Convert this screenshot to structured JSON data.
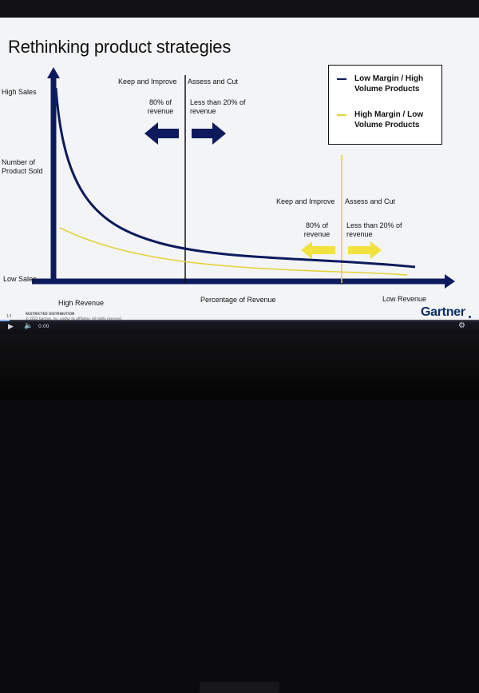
{
  "device": {
    "brand_text": ""
  },
  "slide": {
    "title": "Rethinking product strategies",
    "axis": {
      "y_top": "High Sales",
      "y_mid": "Number of\nProduct Sold",
      "y_bottom": "Low Sales",
      "x_left": "High Revenue",
      "x_mid": "Percentage of Revenue",
      "x_right": "Low Revenue"
    },
    "upper_section": {
      "keep_label": "Keep and Improve",
      "cut_label": "Assess and Cut",
      "keep_share": "80% of\nrevenue",
      "cut_share": "Less than 20% of\nrevenue"
    },
    "lower_section": {
      "keep_label": "Keep and Improve",
      "cut_label": "Assess and Cut",
      "keep_share": "80% of\nrevenue",
      "cut_share": "Less than 20% of\nrevenue"
    },
    "legend": [
      {
        "label": "Low Margin / High\nVolume Products",
        "color": "#0d1b5e"
      },
      {
        "label": "High Margin / Low\nVolume Products",
        "color": "#e3d23a"
      }
    ],
    "footer": {
      "logo": "Gartner",
      "page": "13",
      "restricted": "RESTRICTED DISTRIBUTION",
      "copyright": "© 2022 Gartner, Inc. and/or its affiliates. All rights reserved."
    }
  },
  "player": {
    "time": "0:00",
    "progress": 0.02
  },
  "colors": {
    "navy": "#0d1b5e",
    "yellow": "#e3d23a",
    "arrow_yellow": "#f2e23d",
    "axis": "#0d1b5e",
    "background": "#f3f4f6"
  },
  "icons": {
    "play": "play-icon",
    "volume": "volume-icon",
    "settings": "gear-icon"
  }
}
